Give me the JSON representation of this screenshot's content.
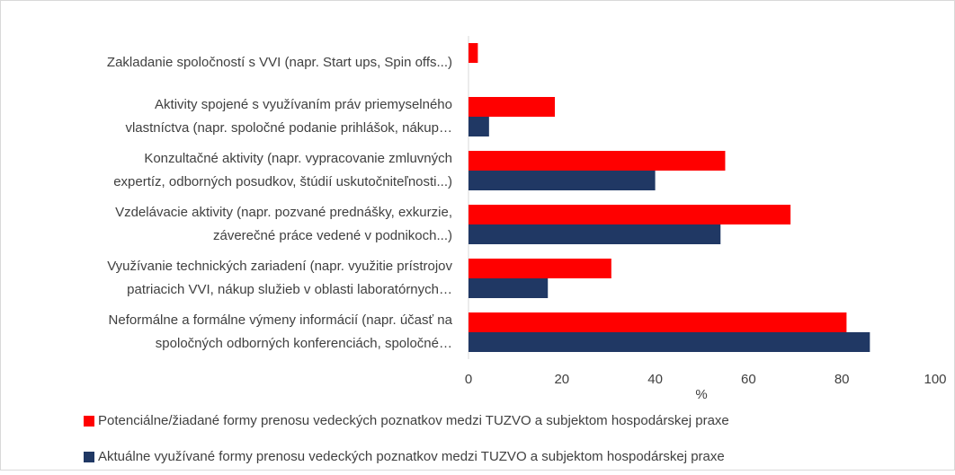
{
  "chart_data": {
    "type": "bar",
    "orientation": "horizontal",
    "categories": [
      [
        "Zakladanie spoločností s VVI (napr. Start ups, Spin offs...)"
      ],
      [
        "Aktivity spojené s využívaním práv priemyselného",
        "vlastníctva (napr. spoločné podanie prihlášok, nákup…"
      ],
      [
        "Konzultačné aktivity (napr. vypracovanie zmluvných",
        "expertíz, odborných posudkov, štúdií uskutočniteľnosti...)"
      ],
      [
        "Vzdelávacie aktivity (napr. pozvané prednášky, exkurzie,",
        "záverečné práce vedené v podnikoch...)"
      ],
      [
        "Využívanie technických zariadení (napr. využitie prístrojov",
        "patriacich VVI, nákup služieb v oblasti laboratórnych…"
      ],
      [
        "Neformálne a formálne výmeny informácií (napr. účasť na",
        "spoločných odborných konferenciách, spoločné…"
      ]
    ],
    "series": [
      {
        "name": "Potenciálne/žiadané formy prenosu vedeckých poznatkov medzi TUZVO a subjektom hospodárskej praxe",
        "color": "#ff0000",
        "values": [
          2,
          18.5,
          55,
          69,
          30.6,
          81
        ]
      },
      {
        "name": "Aktuálne využívané formy prenosu vedeckých poznatkov medzi TUZVO a subjektom hospodárskej praxe",
        "color": "#203864",
        "values": [
          0,
          4.4,
          40,
          54,
          17,
          86
        ]
      }
    ],
    "xlabel": "%",
    "xlim": [
      0,
      100
    ],
    "xticks": [
      0,
      20,
      40,
      60,
      80,
      100
    ],
    "grid": false
  }
}
